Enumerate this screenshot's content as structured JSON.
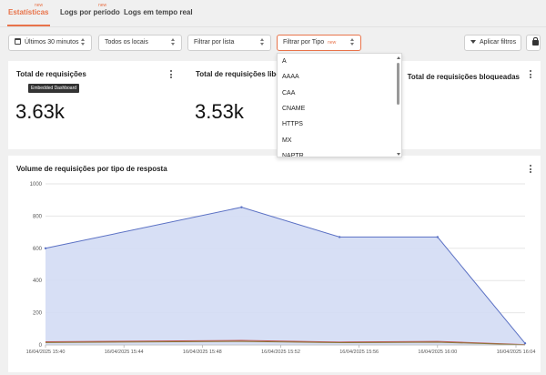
{
  "tabs": [
    {
      "label": "Estatísticas",
      "badge": "new",
      "active": true
    },
    {
      "label": "Logs por período",
      "badge": "new",
      "active": false
    },
    {
      "label": "Logs em tempo real",
      "badge": "",
      "active": false
    }
  ],
  "filters": {
    "time_range": "Últimos 30 minutos",
    "locations": "Todos os locais",
    "list": "Filtrar por lista",
    "type": "Filtrar por Tipo",
    "type_badge": "new",
    "apply_label": "Aplicar filtros"
  },
  "dropdown": {
    "options": [
      "A",
      "AAAA",
      "CAA",
      "CNAME",
      "HTTPS",
      "MX",
      "NAPTR"
    ]
  },
  "cards": {
    "total_requests": {
      "title": "Total de requisições",
      "value": "3.63k",
      "tooltip": "Embedded Dashboard"
    },
    "allowed_requests": {
      "title": "Total de requisições liberadas",
      "value": "3.53k"
    },
    "blocked_requests": {
      "title": "Total de requisições bloqueadas"
    }
  },
  "colors": {
    "accent": "#e8734a",
    "series_allowed": "#5b71c4",
    "series_allowed_fill": "#d3dcf4",
    "series_blocked": "#c0504d",
    "series_other": "#8a7a3a"
  },
  "chart_data": {
    "type": "area",
    "title": "Volume de requisições por tipo de resposta",
    "xlabel": "",
    "ylabel": "",
    "ylim": [
      0,
      1000
    ],
    "yticks": [
      0,
      200,
      400,
      600,
      800,
      1000
    ],
    "grid": true,
    "x": [
      "16/04/2025 15:38",
      "16/04/2025 15:50",
      "16/04/2025 15:55",
      "16/04/2025 16:00",
      "16/04/2025 16:05"
    ],
    "xticks": [
      "16/04/2025 15:40",
      "16/04/2025 15:44",
      "16/04/2025 15:48",
      "16/04/2025 15:52",
      "16/04/2025 15:56",
      "16/04/2025 16:00",
      "16/04/2025 16:04"
    ],
    "series": [
      {
        "values": [
          600,
          855,
          670,
          670,
          10
        ]
      },
      {
        "values": [
          20,
          28,
          18,
          22,
          2
        ]
      },
      {
        "values": [
          15,
          22,
          14,
          17,
          1
        ]
      }
    ]
  }
}
